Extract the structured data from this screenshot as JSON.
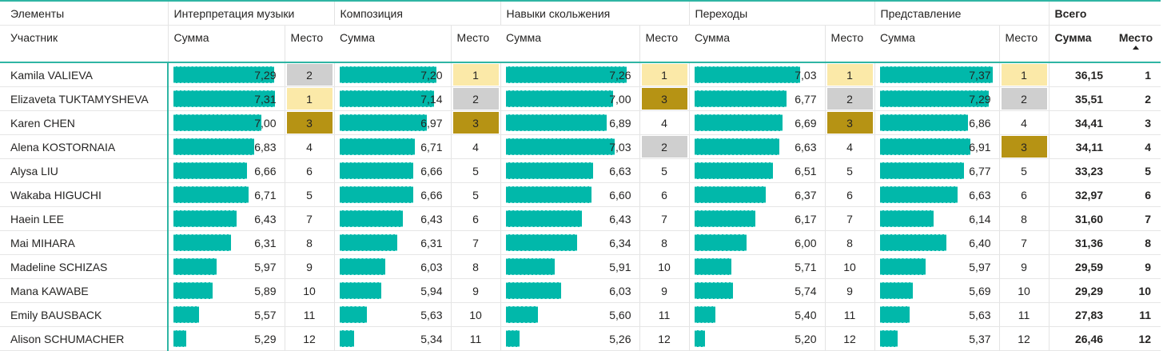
{
  "header": {
    "elements_label": "Элементы",
    "participant_label": "Участник",
    "total_label": "Всего",
    "sum_label": "Сумма",
    "place_label": "Место",
    "groups": [
      "Интерпретация музыки",
      "Композиция",
      "Навыки скольжения",
      "Переходы",
      "Представление"
    ]
  },
  "colors": {
    "bar": "#01b8aa",
    "accent": "#2fb5a4",
    "gold": "#fbe9a8",
    "silver": "#cfcfcf",
    "bronze": "#b69314"
  },
  "bar_scale": {
    "min": 5.0,
    "max": 7.4
  },
  "rows": [
    {
      "name": "Kamila VALIEVA",
      "cells": [
        [
          "7,29",
          "2"
        ],
        [
          "7,20",
          "1"
        ],
        [
          "7,26",
          "1"
        ],
        [
          "7,03",
          "1"
        ],
        [
          "7,37",
          "1"
        ]
      ],
      "total_sum": "36,15",
      "total_place": "1"
    },
    {
      "name": "Elizaveta TUKTAMYSHEVA",
      "cells": [
        [
          "7,31",
          "1"
        ],
        [
          "7,14",
          "2"
        ],
        [
          "7,00",
          "3"
        ],
        [
          "6,77",
          "2"
        ],
        [
          "7,29",
          "2"
        ]
      ],
      "total_sum": "35,51",
      "total_place": "2"
    },
    {
      "name": "Karen CHEN",
      "cells": [
        [
          "7,00",
          "3"
        ],
        [
          "6,97",
          "3"
        ],
        [
          "6,89",
          "4"
        ],
        [
          "6,69",
          "3"
        ],
        [
          "6,86",
          "4"
        ]
      ],
      "total_sum": "34,41",
      "total_place": "3"
    },
    {
      "name": "Alena KOSTORNAIA",
      "cells": [
        [
          "6,83",
          "4"
        ],
        [
          "6,71",
          "4"
        ],
        [
          "7,03",
          "2"
        ],
        [
          "6,63",
          "4"
        ],
        [
          "6,91",
          "3"
        ]
      ],
      "total_sum": "34,11",
      "total_place": "4"
    },
    {
      "name": "Alysa LIU",
      "cells": [
        [
          "6,66",
          "6"
        ],
        [
          "6,66",
          "5"
        ],
        [
          "6,63",
          "5"
        ],
        [
          "6,51",
          "5"
        ],
        [
          "6,77",
          "5"
        ]
      ],
      "total_sum": "33,23",
      "total_place": "5"
    },
    {
      "name": "Wakaba HIGUCHI",
      "cells": [
        [
          "6,71",
          "5"
        ],
        [
          "6,66",
          "5"
        ],
        [
          "6,60",
          "6"
        ],
        [
          "6,37",
          "6"
        ],
        [
          "6,63",
          "6"
        ]
      ],
      "total_sum": "32,97",
      "total_place": "6"
    },
    {
      "name": "Haein LEE",
      "cells": [
        [
          "6,43",
          "7"
        ],
        [
          "6,43",
          "6"
        ],
        [
          "6,43",
          "7"
        ],
        [
          "6,17",
          "7"
        ],
        [
          "6,14",
          "8"
        ]
      ],
      "total_sum": "31,60",
      "total_place": "7"
    },
    {
      "name": "Mai MIHARA",
      "cells": [
        [
          "6,31",
          "8"
        ],
        [
          "6,31",
          "7"
        ],
        [
          "6,34",
          "8"
        ],
        [
          "6,00",
          "8"
        ],
        [
          "6,40",
          "7"
        ]
      ],
      "total_sum": "31,36",
      "total_place": "8"
    },
    {
      "name": "Madeline SCHIZAS",
      "cells": [
        [
          "5,97",
          "9"
        ],
        [
          "6,03",
          "8"
        ],
        [
          "5,91",
          "10"
        ],
        [
          "5,71",
          "10"
        ],
        [
          "5,97",
          "9"
        ]
      ],
      "total_sum": "29,59",
      "total_place": "9"
    },
    {
      "name": "Mana KAWABE",
      "cells": [
        [
          "5,89",
          "10"
        ],
        [
          "5,94",
          "9"
        ],
        [
          "6,03",
          "9"
        ],
        [
          "5,74",
          "9"
        ],
        [
          "5,69",
          "10"
        ]
      ],
      "total_sum": "29,29",
      "total_place": "10"
    },
    {
      "name": "Emily BAUSBACK",
      "cells": [
        [
          "5,57",
          "11"
        ],
        [
          "5,63",
          "10"
        ],
        [
          "5,60",
          "11"
        ],
        [
          "5,40",
          "11"
        ],
        [
          "5,63",
          "11"
        ]
      ],
      "total_sum": "27,83",
      "total_place": "11"
    },
    {
      "name": "Alison SCHUMACHER",
      "cells": [
        [
          "5,29",
          "12"
        ],
        [
          "5,34",
          "11"
        ],
        [
          "5,26",
          "12"
        ],
        [
          "5,20",
          "12"
        ],
        [
          "5,37",
          "12"
        ]
      ],
      "total_sum": "26,46",
      "total_place": "12"
    }
  ]
}
